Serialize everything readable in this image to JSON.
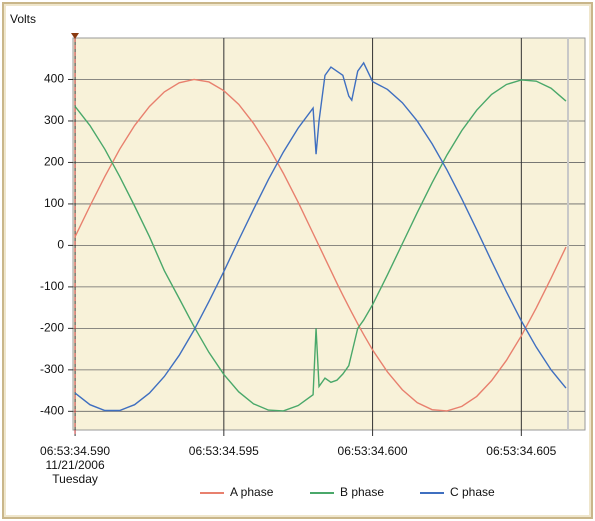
{
  "chart_data": {
    "type": "line",
    "y_label": "Volts",
    "x": [
      34.59,
      34.5905,
      34.591,
      34.5915,
      34.592,
      34.5925,
      34.593,
      34.5935,
      34.594,
      34.5945,
      34.595,
      34.5955,
      34.596,
      34.5965,
      34.597,
      34.5975,
      34.598,
      34.5981,
      34.5982,
      34.5984,
      34.5986,
      34.5988,
      34.599,
      34.5992,
      34.5993,
      34.5995,
      34.5997,
      34.6,
      34.6005,
      34.601,
      34.6015,
      34.602,
      34.6025,
      34.603,
      34.6035,
      34.604,
      34.6045,
      34.605,
      34.6055,
      34.606,
      34.6065
    ],
    "series": [
      {
        "name": "A phase",
        "color": "#e8806e",
        "values": [
          21,
          95,
          166,
          232,
          289,
          335,
          370,
          392,
          400,
          394,
          373,
          340,
          294,
          238,
          174,
          104,
          29,
          14,
          -1,
          -31,
          -61,
          -91,
          -120,
          -148,
          -162,
          -189,
          -215,
          -252,
          -305,
          -348,
          -379,
          -396,
          -399,
          -388,
          -364,
          -326,
          -277,
          -218,
          -151,
          -79,
          -4
        ]
      },
      {
        "name": "B phase",
        "color": "#4aa86a",
        "values": [
          335,
          289,
          232,
          166,
          95,
          21,
          -61,
          -128,
          -196,
          -258,
          -311,
          -353,
          -382,
          -397,
          -399,
          -386,
          -360,
          -200,
          -340,
          -320,
          -330,
          -325,
          -310,
          -290,
          -260,
          -200,
          -180,
          -143,
          -71,
          4,
          79,
          151,
          218,
          277,
          326,
          364,
          388,
          399,
          396,
          379,
          348
        ]
      },
      {
        "name": "C phase",
        "color": "#3f6fc0",
        "values": [
          -356,
          -384,
          -398,
          -398,
          -384,
          -356,
          -316,
          -265,
          -204,
          -135,
          -63,
          13,
          87,
          159,
          225,
          283,
          331,
          220,
          300,
          410,
          430,
          420,
          410,
          360,
          350,
          420,
          440,
          395,
          376,
          344,
          300,
          245,
          182,
          112,
          38,
          -38,
          -112,
          -182,
          -245,
          -300,
          -344
        ]
      }
    ],
    "xlim": [
      34.58993,
      34.60714
    ],
    "ylim": [
      -445,
      500
    ],
    "xticks": [
      {
        "value": 34.59,
        "label": "06:53:34.590\n11/21/2006\nTuesday"
      },
      {
        "value": 34.595,
        "label": "06:53:34.595"
      },
      {
        "value": 34.6,
        "label": "06:53:34.600"
      },
      {
        "value": 34.605,
        "label": "06:53:34.605"
      }
    ],
    "yticks": [
      -400,
      -300,
      -200,
      -100,
      0,
      100,
      200,
      300,
      400
    ],
    "grid": true,
    "legend": "bottom"
  }
}
